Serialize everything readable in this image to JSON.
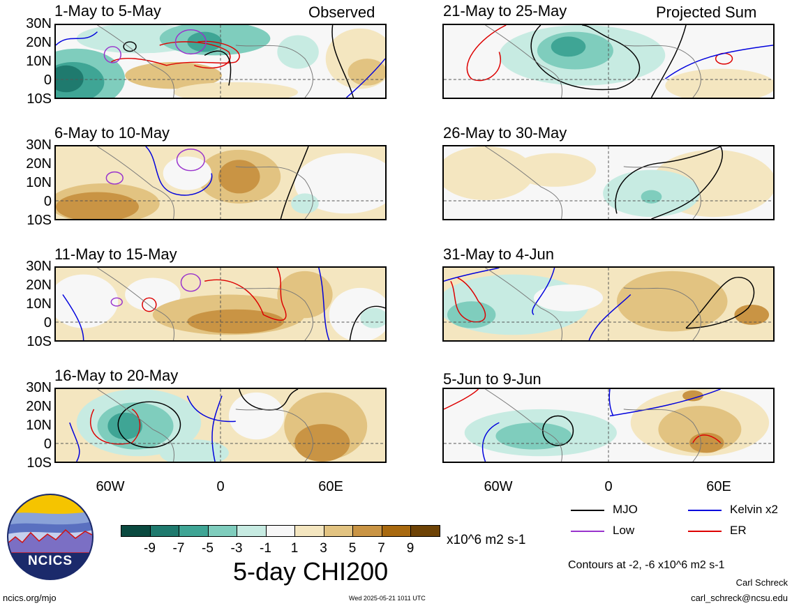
{
  "observed_label": "Observed",
  "projected_label": "Projected Sum",
  "left_panels": [
    {
      "title": "1-May to 5-May"
    },
    {
      "title": "6-May to 10-May"
    },
    {
      "title": "11-May to 15-May"
    },
    {
      "title": "16-May to 20-May"
    }
  ],
  "right_panels": [
    {
      "title": "21-May to 25-May"
    },
    {
      "title": "26-May to 30-May"
    },
    {
      "title": "31-May to 4-Jun"
    },
    {
      "title": "5-Jun to 9-Jun"
    }
  ],
  "lat_labels": [
    "30N",
    "20N",
    "10N",
    "0",
    "10S"
  ],
  "lon_labels": [
    "60W",
    "0",
    "60E"
  ],
  "colorbar": {
    "colors": [
      "#0b4a40",
      "#1f7a6e",
      "#3fa595",
      "#7fcdbd",
      "#c7ebe2",
      "#f7f7f7",
      "#f4e6c0",
      "#e2c381",
      "#c99444",
      "#a8690f",
      "#6e4306"
    ],
    "ticks": [
      "-9",
      "-7",
      "-5",
      "-3",
      "-1",
      "1",
      "3",
      "5",
      "7",
      "9"
    ],
    "units": "x10^6 m2 s-1",
    "title": "5-day CHI200"
  },
  "legend": {
    "items": [
      {
        "label": "MJO",
        "color": "#000000"
      },
      {
        "label": "Kelvin x2",
        "color": "#0000dd"
      },
      {
        "label": "Low",
        "color": "#9933cc"
      },
      {
        "label": "ER",
        "color": "#dd0000"
      }
    ],
    "contour_note": "Contours at -2, -6 x10^6 m2 s-1"
  },
  "logo_text": "NCICS",
  "url": "ncics.org/mjo",
  "timestamp": "Wed 2025-05-21 1011 UTC",
  "author": "Carl Schreck",
  "email": "carl_schreck@ncsu.edu"
}
